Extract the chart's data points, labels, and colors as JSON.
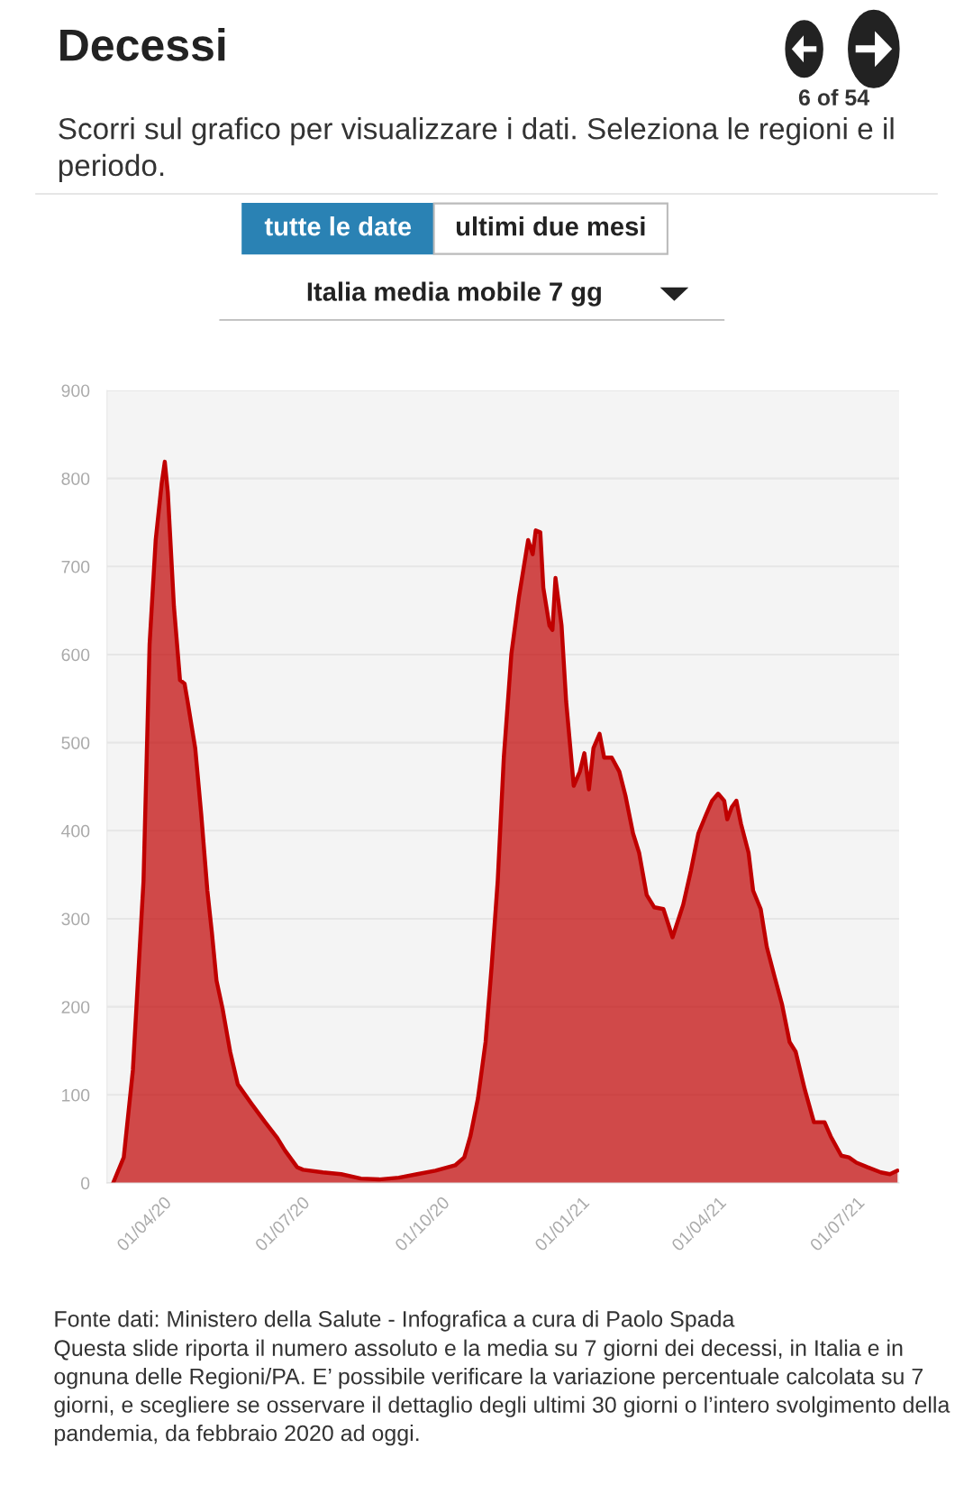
{
  "chart_data": {
    "type": "area",
    "title": "Decessi",
    "subtitle": "Scorri sul grafico per visualizzare i dati. Seleziona le regioni e il periodo.",
    "annotations": [
      "6 of 54",
      "tutte le date",
      "ultimi due mesi",
      "Italia media mobile 7 gg",
      "Fonte dati: Ministero della Salute - Infografica a cura di Paolo Spada",
      "Questa slide riporta il numero assoluto e la media su 7 giorni dei decessi, in Italia e in ognuna delle Regioni/PA. E’ possibile verificare la variazione percentuale calcolata su 7 giorni, e scegliere se osservare il dettaglio degli ultimi 30 giorni o l’intero svolgimento della pandemia, da febbraio 2020 ad oggi."
    ],
    "x": [
      "2020-02-28",
      "2020-03-06",
      "2020-03-12",
      "2020-03-19",
      "2020-03-23",
      "2020-03-27",
      "2020-03-31",
      "2020-04-02",
      "2020-04-04",
      "2020-04-08",
      "2020-04-12",
      "2020-04-15",
      "2020-04-17",
      "2020-04-22",
      "2020-04-26",
      "2020-04-30",
      "2020-05-03",
      "2020-05-06",
      "2020-05-10",
      "2020-05-15",
      "2020-05-20",
      "2020-05-29",
      "2020-06-07",
      "2020-06-15",
      "2020-06-20",
      "2020-06-28",
      "2020-07-02",
      "2020-07-15",
      "2020-07-27",
      "2020-08-09",
      "2020-08-21",
      "2020-09-03",
      "2020-09-15",
      "2020-09-27",
      "2020-10-10",
      "2020-10-16",
      "2020-10-20",
      "2020-10-25",
      "2020-10-30",
      "2020-11-03",
      "2020-11-07",
      "2020-11-11",
      "2020-11-16",
      "2020-11-21",
      "2020-11-24",
      "2020-11-27",
      "2020-11-30",
      "2020-12-02",
      "2020-12-05",
      "2020-12-07",
      "2020-12-11",
      "2020-12-13",
      "2020-12-15",
      "2020-12-19",
      "2020-12-22",
      "2020-12-27",
      "2020-12-31",
      "2021-01-03",
      "2021-01-06",
      "2021-01-09",
      "2021-01-13",
      "2021-01-16",
      "2021-01-21",
      "2021-01-26",
      "2021-01-30",
      "2021-02-04",
      "2021-02-08",
      "2021-02-13",
      "2021-02-18",
      "2021-02-24",
      "2021-03-02",
      "2021-03-06",
      "2021-03-09",
      "2021-03-14",
      "2021-03-19",
      "2021-03-24",
      "2021-03-28",
      "2021-04-01",
      "2021-04-05",
      "2021-04-07",
      "2021-04-10",
      "2021-04-13",
      "2021-04-16",
      "2021-04-21",
      "2021-04-24",
      "2021-04-29",
      "2021-05-03",
      "2021-05-08",
      "2021-05-13",
      "2021-05-18",
      "2021-05-22",
      "2021-05-28",
      "2021-06-03",
      "2021-06-10",
      "2021-06-14",
      "2021-06-21",
      "2021-06-26",
      "2021-07-01",
      "2021-07-08",
      "2021-07-17",
      "2021-07-23",
      "2021-07-28"
    ],
    "series": [
      {
        "color": "#c00000",
        "values": [
          0,
          29,
          128,
          343,
          612,
          730,
          795,
          819,
          784,
          655,
          571,
          567,
          547,
          494,
          418,
          332,
          284,
          230,
          198,
          149,
          112,
          90,
          69,
          51,
          37,
          18,
          15,
          12,
          10,
          5,
          4,
          6,
          10,
          14,
          20,
          29,
          53,
          96,
          160,
          246,
          343,
          483,
          601,
          666,
          698,
          730,
          714,
          741,
          739,
          676,
          633,
          628,
          687,
          633,
          547,
          451,
          467,
          488,
          447,
          494,
          510,
          483,
          483,
          467,
          440,
          397,
          375,
          327,
          313,
          311,
          279,
          300,
          316,
          354,
          397,
          418,
          434,
          442,
          434,
          413,
          427,
          434,
          408,
          375,
          332,
          311,
          268,
          235,
          203,
          160,
          149,
          106,
          69,
          69,
          53,
          31,
          29,
          23,
          18,
          12,
          10,
          14
        ]
      }
    ],
    "xlim": [
      "2020-02-24",
      "2021-07-29"
    ],
    "xticks": [
      {
        "value": "2020-04-01",
        "label": "01/04/20"
      },
      {
        "value": "2020-07-01",
        "label": "01/07/20"
      },
      {
        "value": "2020-10-01",
        "label": "01/10/20"
      },
      {
        "value": "2021-01-01",
        "label": "01/01/21"
      },
      {
        "value": "2021-04-01",
        "label": "01/04/21"
      },
      {
        "value": "2021-07-01",
        "label": "01/07/21"
      }
    ],
    "ylim": [
      0,
      900
    ],
    "yticks": [
      0,
      100,
      200,
      300,
      400,
      500,
      600,
      700,
      800,
      900
    ],
    "grid": "y"
  }
}
